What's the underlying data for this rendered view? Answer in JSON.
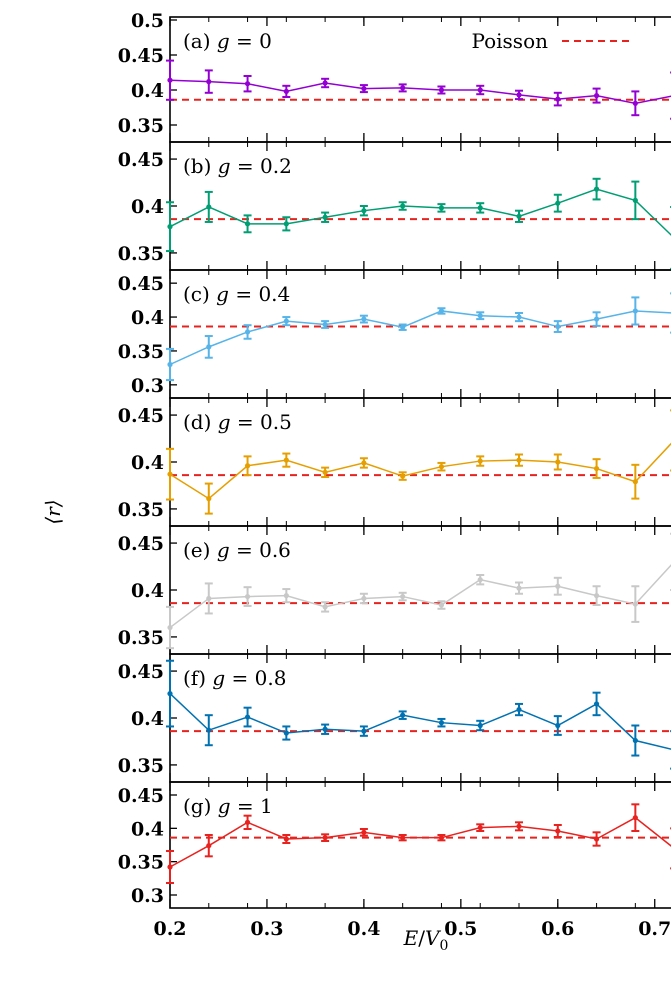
{
  "chart_data": {
    "type": "line",
    "xlabel": "E/V_0",
    "ylabel": "⟨r⟩",
    "xlim": [
      0.2,
      0.72
    ],
    "x_ticks": [
      0.2,
      0.3,
      0.4,
      0.5,
      0.6,
      0.7
    ],
    "x_tick_labels": [
      "0.2",
      "0.3",
      "0.4",
      "0.5",
      "0.6",
      "0.7"
    ],
    "reference": {
      "name": "Poisson",
      "value": 0.386,
      "color": "#e8231f"
    },
    "x": [
      0.2,
      0.24,
      0.28,
      0.32,
      0.36,
      0.4,
      0.44,
      0.48,
      0.52,
      0.56,
      0.6,
      0.64,
      0.68,
      0.72
    ],
    "panels": [
      {
        "label": "(a)",
        "g": "0",
        "color": "#9400d3",
        "ylim": [
          0.33,
          0.5
        ],
        "yticks": [
          0.35,
          0.4,
          0.45,
          0.5
        ],
        "ytick_labels": [
          "0.35",
          "0.4",
          "0.45",
          "0.5"
        ],
        "y": [
          0.414,
          0.412,
          0.409,
          0.398,
          0.41,
          0.402,
          0.403,
          0.4,
          0.4,
          0.393,
          0.387,
          0.392,
          0.381,
          0.392
        ],
        "err": [
          0.028,
          0.016,
          0.011,
          0.008,
          0.006,
          0.005,
          0.005,
          0.005,
          0.006,
          0.006,
          0.009,
          0.01,
          0.017,
          0.033
        ]
      },
      {
        "label": "(b)",
        "g": "0.2",
        "color": "#009e73",
        "ylim": [
          0.335,
          0.465
        ],
        "yticks": [
          0.35,
          0.4,
          0.45
        ],
        "ytick_labels": [
          "0.35",
          "0.4",
          "0.45"
        ],
        "y": [
          0.378,
          0.399,
          0.381,
          0.381,
          0.388,
          0.395,
          0.4,
          0.398,
          0.398,
          0.389,
          0.403,
          0.418,
          0.406,
          0.366
        ],
        "err": [
          0.026,
          0.016,
          0.009,
          0.007,
          0.005,
          0.005,
          0.004,
          0.004,
          0.005,
          0.006,
          0.009,
          0.011,
          0.02,
          0.033
        ]
      },
      {
        "label": "(c)",
        "g": "0.4",
        "color": "#56b4e9",
        "ylim": [
          0.285,
          0.465
        ],
        "yticks": [
          0.3,
          0.35,
          0.4,
          0.45
        ],
        "ytick_labels": [
          "0.3",
          "0.35",
          "0.4",
          "0.45"
        ],
        "y": [
          0.33,
          0.356,
          0.378,
          0.394,
          0.389,
          0.397,
          0.385,
          0.409,
          0.402,
          0.4,
          0.386,
          0.397,
          0.409,
          0.406
        ],
        "err": [
          0.023,
          0.016,
          0.01,
          0.006,
          0.005,
          0.005,
          0.004,
          0.004,
          0.005,
          0.006,
          0.008,
          0.01,
          0.02,
          0.029
        ]
      },
      {
        "label": "(d)",
        "g": "0.5",
        "color": "#e69f00",
        "ylim": [
          0.335,
          0.465
        ],
        "yticks": [
          0.35,
          0.4,
          0.45
        ],
        "ytick_labels": [
          "0.35",
          "0.4",
          "0.45"
        ],
        "y": [
          0.387,
          0.361,
          0.396,
          0.402,
          0.389,
          0.399,
          0.385,
          0.395,
          0.401,
          0.402,
          0.4,
          0.393,
          0.379,
          0.423
        ],
        "err": [
          0.027,
          0.016,
          0.01,
          0.007,
          0.005,
          0.005,
          0.004,
          0.004,
          0.005,
          0.006,
          0.008,
          0.01,
          0.018,
          0.032
        ]
      },
      {
        "label": "(e)",
        "g": "0.6",
        "color": "#c8c8c8",
        "ylim": [
          0.335,
          0.465
        ],
        "yticks": [
          0.35,
          0.4,
          0.45
        ],
        "ytick_labels": [
          "0.35",
          "0.4",
          "0.45"
        ],
        "y": [
          0.36,
          0.391,
          0.393,
          0.394,
          0.382,
          0.391,
          0.393,
          0.384,
          0.411,
          0.402,
          0.404,
          0.394,
          0.385,
          0.43
        ],
        "err": [
          0.022,
          0.016,
          0.01,
          0.007,
          0.005,
          0.005,
          0.004,
          0.004,
          0.005,
          0.006,
          0.009,
          0.01,
          0.019,
          0.03
        ]
      },
      {
        "label": "(f)",
        "g": "0.8",
        "color": "#0072b2",
        "ylim": [
          0.335,
          0.465
        ],
        "yticks": [
          0.35,
          0.4,
          0.45
        ],
        "ytick_labels": [
          "0.35",
          "0.4",
          "0.45"
        ],
        "y": [
          0.426,
          0.387,
          0.401,
          0.384,
          0.388,
          0.386,
          0.403,
          0.395,
          0.392,
          0.409,
          0.392,
          0.415,
          0.376,
          0.366
        ],
        "err": [
          0.035,
          0.016,
          0.01,
          0.007,
          0.005,
          0.005,
          0.004,
          0.004,
          0.005,
          0.006,
          0.01,
          0.012,
          0.016,
          0.02
        ]
      },
      {
        "label": "(g)",
        "g": "1",
        "color": "#e8231f",
        "ylim": [
          0.285,
          0.465
        ],
        "yticks": [
          0.3,
          0.35,
          0.4,
          0.45
        ],
        "ytick_labels": [
          "0.3",
          "0.35",
          "0.4",
          "0.45"
        ],
        "y": [
          0.342,
          0.374,
          0.409,
          0.384,
          0.386,
          0.394,
          0.386,
          0.386,
          0.401,
          0.403,
          0.396,
          0.384,
          0.416,
          0.37
        ],
        "err": [
          0.024,
          0.016,
          0.01,
          0.006,
          0.005,
          0.005,
          0.004,
          0.004,
          0.005,
          0.006,
          0.009,
          0.01,
          0.02,
          0.03
        ]
      }
    ]
  }
}
